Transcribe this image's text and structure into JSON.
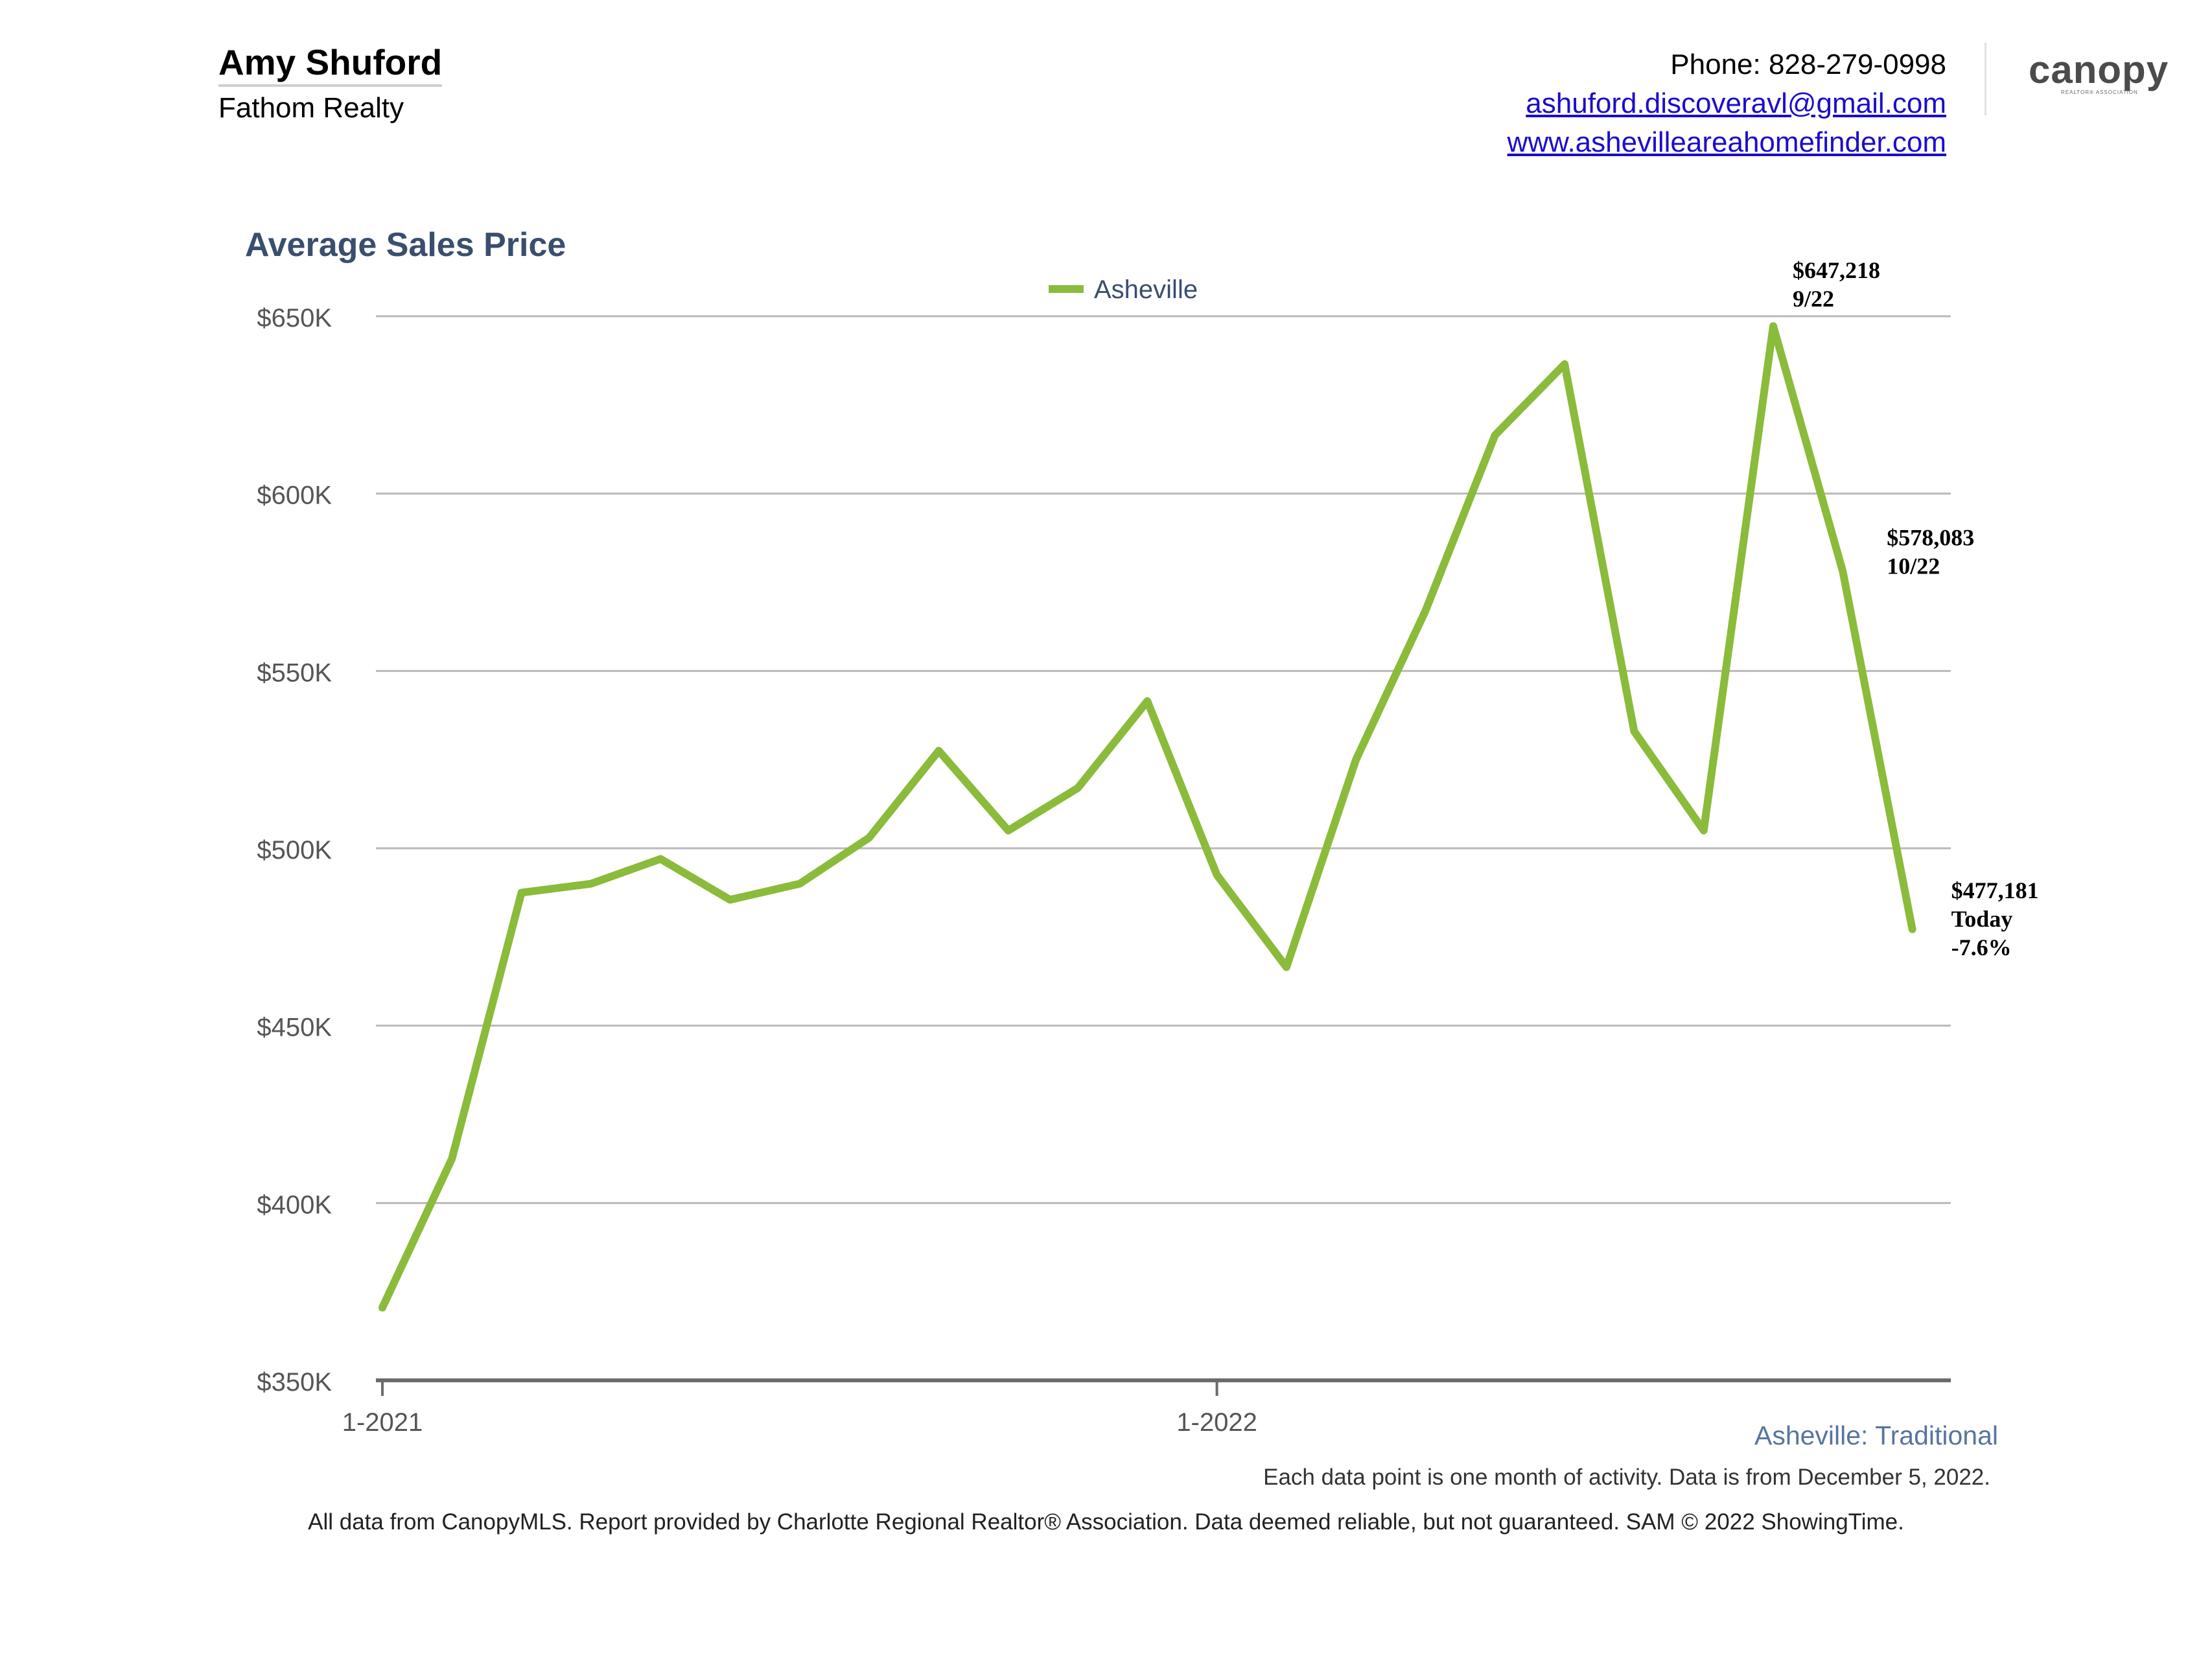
{
  "header": {
    "agent_name": "Amy Shuford",
    "agent_company": "Fathom Realty",
    "phone": "Phone: 828-279-0998",
    "email": "ashuford.discoveravl@gmail.com",
    "website": "www.ashevilleareahomefinder.com",
    "logo_text": "canopy",
    "logo_subtext": "REALTOR® ASSOCIATION"
  },
  "chart_data": {
    "type": "line",
    "title": "Average Sales Price",
    "series": [
      {
        "name": "Asheville",
        "color": "#8bbb3b",
        "x": [
          "1-2021",
          "2-2021",
          "3-2021",
          "4-2021",
          "5-2021",
          "6-2021",
          "7-2021",
          "8-2021",
          "9-2021",
          "10-2021",
          "11-2021",
          "12-2021",
          "1-2022",
          "2-2022",
          "3-2022",
          "4-2022",
          "5-2022",
          "6-2022",
          "7-2022",
          "8-2022",
          "9-2022",
          "10-2022",
          "Today"
        ],
        "values": [
          370500,
          412500,
          487500,
          490000,
          497000,
          485500,
          490000,
          503000,
          527500,
          505000,
          517000,
          541500,
          492500,
          466500,
          525000,
          567000,
          616500,
          636500,
          533000,
          505000,
          647218,
          578083,
          477181
        ]
      }
    ],
    "y_ticks": [
      {
        "value": 650000,
        "label": "$650K"
      },
      {
        "value": 600000,
        "label": "$600K"
      },
      {
        "value": 550000,
        "label": "$550K"
      },
      {
        "value": 500000,
        "label": "$500K"
      },
      {
        "value": 450000,
        "label": "$450K"
      },
      {
        "value": 400000,
        "label": "$400K"
      },
      {
        "value": 350000,
        "label": "$350K"
      }
    ],
    "x_ticks": [
      {
        "index": 0,
        "label": "1-2021"
      },
      {
        "index": 12,
        "label": "1-2022"
      }
    ],
    "ylim": [
      350000,
      650000
    ],
    "grid": true,
    "legend_position": "top-center",
    "annotations": [
      {
        "index": 20,
        "lines": [
          "$647,218",
          "9/22"
        ]
      },
      {
        "index": 21,
        "lines": [
          "$578,083",
          "10/22"
        ]
      },
      {
        "index": 22,
        "lines": [
          "$477,181",
          "Today",
          "-7.6%"
        ]
      }
    ]
  },
  "footer": {
    "region": "Asheville: Traditional",
    "note": "Each data point is one month of activity. Data is from December 5, 2022.",
    "disclaimer": "All data from CanopyMLS. Report provided by Charlotte Regional Realtor® Association. Data deemed reliable, but not guaranteed. SAM © 2022 ShowingTime."
  }
}
